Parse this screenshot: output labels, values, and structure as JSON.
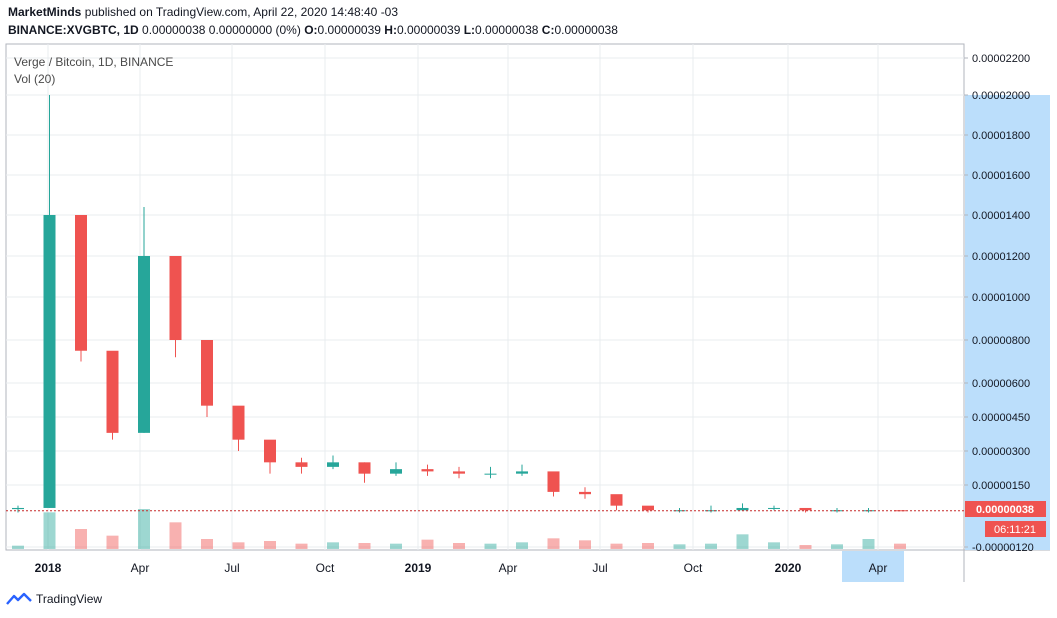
{
  "header": {
    "author": "MarketMinds",
    "published_text": "published on TradingView.com, April 22, 2020 14:48:40 -03",
    "symbol": "BINANCE:XVGBTC, 1D",
    "last": "0.00000038",
    "change": "0.00000000 (0%)",
    "o_label": "O:",
    "o_value": "0.00000039",
    "h_label": "H:",
    "h_value": "0.00000039",
    "l_label": "L:",
    "l_value": "0.00000038",
    "c_label": "C:",
    "c_value": "0.00000038"
  },
  "legend": {
    "title": "Verge / Bitcoin, 1D, BINANCE",
    "volume": "Vol (20)"
  },
  "price_badge": "0.00000038",
  "countdown_badge": "06:11:21",
  "footer": {
    "brand": "TradingView"
  },
  "colors": {
    "up": "#26a69a",
    "down": "#ef5350",
    "grid": "#e9ecef",
    "axis_text": "#131722",
    "price_line": "#c62828",
    "highlight": "#bbdefb"
  },
  "chart_data": {
    "type": "candlestick",
    "y_axis_ticks": [
      "0.00002200",
      "0.00002000",
      "0.00001800",
      "0.00001600",
      "0.00001400",
      "0.00001200",
      "0.00001000",
      "0.00000800",
      "0.00000600",
      "0.00000450",
      "0.00000300",
      "0.00000150",
      "-0.00000120"
    ],
    "x_axis_ticks": [
      "2018",
      "Apr",
      "Jul",
      "Oct",
      "2019",
      "Apr",
      "Jul",
      "Oct",
      "2020",
      "Apr"
    ],
    "x": [
      "2017-12",
      "2018-01",
      "2018-02",
      "2018-03",
      "2018-04",
      "2018-05",
      "2018-06",
      "2018-07",
      "2018-08",
      "2018-09",
      "2018-10",
      "2018-11",
      "2018-12",
      "2019-01",
      "2019-02",
      "2019-03",
      "2019-04",
      "2019-05",
      "2019-06",
      "2019-07",
      "2019-08",
      "2019-09",
      "2019-10",
      "2019-11",
      "2019-12",
      "2020-01",
      "2020-02",
      "2020-03",
      "2020-04"
    ],
    "close": [
      5e-07,
      1.4e-05,
      7.5e-06,
      3.8e-06,
      1.2e-05,
      8e-06,
      5e-06,
      3.5e-06,
      2.5e-06,
      2.3e-06,
      2.5e-06,
      2e-06,
      2.2e-06,
      2.1e-06,
      2e-06,
      2e-06,
      2.1e-06,
      1.2e-06,
      1.1e-06,
      6e-07,
      4e-07,
      4e-07,
      4e-07,
      5e-07,
      5e-07,
      4e-07,
      4e-07,
      4e-07,
      3.8e-07
    ],
    "high": [
      6e-07,
      2e-05,
      9.2e-06,
      4.5e-06,
      1.44e-05,
      9.3e-06,
      6e-06,
      4e-06,
      2.9e-06,
      2.7e-06,
      2.8e-06,
      2.5e-06,
      2.5e-06,
      2.4e-06,
      2.3e-06,
      2.3e-06,
      2.4e-06,
      1.5e-06,
      1.4e-06,
      8e-07,
      5e-07,
      5e-07,
      6e-07,
      7e-07,
      6e-07,
      5e-07,
      5e-07,
      5e-07,
      3.9e-07
    ],
    "low": [
      3e-07,
      5e-07,
      7e-06,
      3.5e-06,
      3.8e-06,
      7.2e-06,
      4.5e-06,
      3e-06,
      2e-06,
      2e-06,
      2.2e-06,
      1.6e-06,
      1.9e-06,
      1.9e-06,
      1.8e-06,
      1.8e-06,
      1.9e-06,
      1e-06,
      9e-07,
      4e-07,
      3e-07,
      3e-07,
      3e-07,
      4e-07,
      4e-07,
      3e-07,
      3e-07,
      3e-07,
      3.8e-07
    ],
    "volume": [
      5,
      55,
      30,
      20,
      60,
      40,
      15,
      10,
      12,
      8,
      10,
      9,
      8,
      14,
      9,
      8,
      10,
      16,
      13,
      8,
      9,
      7,
      8,
      22,
      10,
      6,
      7,
      15,
      8
    ],
    "last_price": 3.8e-07,
    "grid": true
  }
}
